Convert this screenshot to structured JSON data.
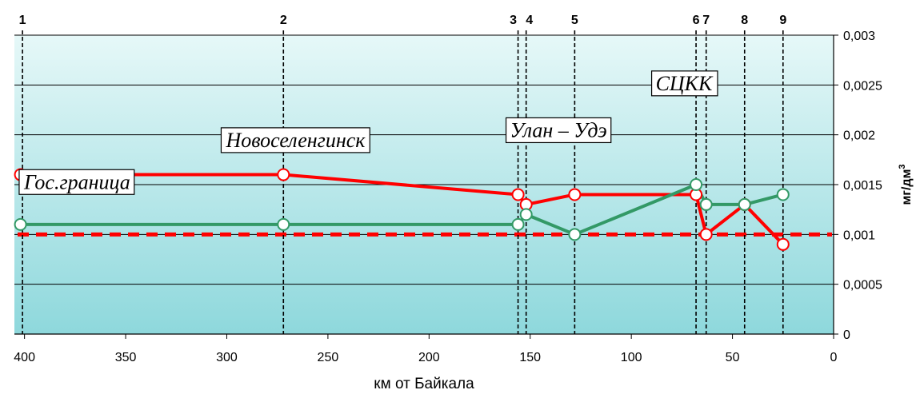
{
  "chart_data": {
    "type": "line",
    "title": "",
    "xlabel": "км от Байкала",
    "ylabel": "мг/дм",
    "ylabel_superscript": "3",
    "xlim": [
      405,
      0
    ],
    "ylim": [
      0,
      0.003
    ],
    "x_ticks": [
      400,
      350,
      300,
      250,
      200,
      150,
      100,
      50,
      0
    ],
    "x_tick_labels": [
      "400",
      "350",
      "300",
      "250",
      "200",
      "150",
      "100",
      "50",
      "0"
    ],
    "y_ticks": [
      0,
      0.0005,
      0.001,
      0.0015,
      0.002,
      0.0025,
      0.003
    ],
    "y_tick_labels": [
      "0",
      "0,0005",
      "0,001",
      "0,0015",
      "0,002",
      "0,0025",
      "0,003"
    ],
    "grid": "horizontal",
    "colors": {
      "plot_background_top": "#e6f8f8",
      "plot_background_bottom": "#8ed8dc",
      "series_red": "#ff0000",
      "series_green": "#339966",
      "reference_line": "#ff0000"
    },
    "series": [
      {
        "name": "",
        "color": "#ff0000",
        "x": [
          402,
          272,
          156,
          152,
          128,
          68,
          63,
          44,
          25
        ],
        "y": [
          0.0016,
          0.0016,
          0.0014,
          0.0013,
          0.0014,
          0.0014,
          0.001,
          0.0013,
          0.0009
        ]
      },
      {
        "name": "",
        "color": "#339966",
        "x": [
          402,
          272,
          156,
          152,
          128,
          68,
          63,
          44,
          25
        ],
        "y": [
          0.0011,
          0.0011,
          0.0011,
          0.0012,
          0.001,
          0.0015,
          0.0013,
          0.0013,
          0.0014
        ]
      }
    ],
    "reference_line": {
      "y": 0.001,
      "style": "dashed",
      "color": "#ff0000"
    },
    "stations": [
      {
        "x": 401,
        "label": "1"
      },
      {
        "x": 272,
        "label": "2"
      },
      {
        "x": 156,
        "label": "3"
      },
      {
        "x": 152,
        "label": "4"
      },
      {
        "x": 128,
        "label": "5"
      },
      {
        "x": 68,
        "label": "6"
      },
      {
        "x": 63,
        "label": "7"
      },
      {
        "x": 44,
        "label": "8"
      },
      {
        "x": 25,
        "label": "9"
      }
    ],
    "annotations": [
      {
        "text": "Гос.граница",
        "x": 374,
        "y": 0.00153
      },
      {
        "text": "Новоселенгинск",
        "x": 266,
        "y": 0.00195
      },
      {
        "text": "Улан – Удэ",
        "x": 136,
        "y": 0.00205
      },
      {
        "text": "СЦКК",
        "x": 74,
        "y": 0.00252
      }
    ]
  }
}
